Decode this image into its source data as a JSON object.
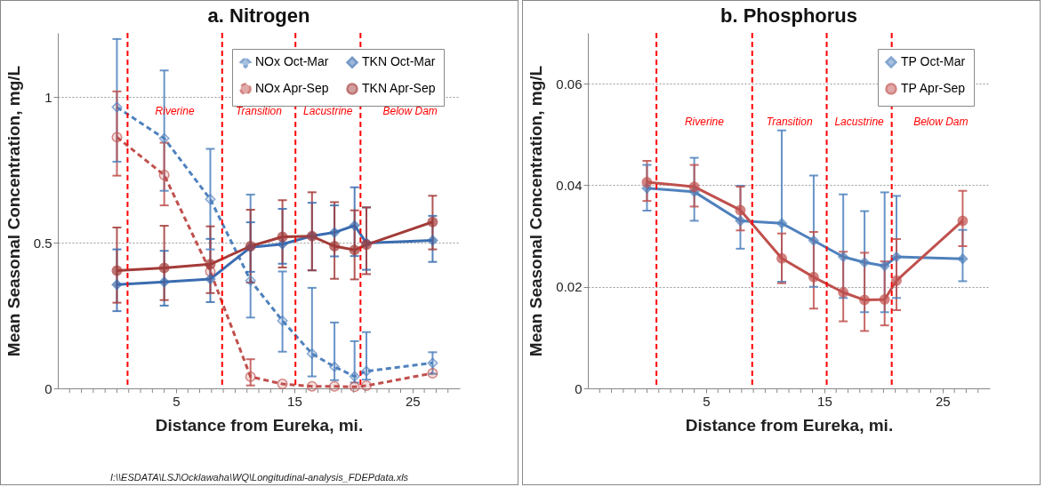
{
  "chart_data": [
    {
      "type": "line",
      "title": "a. Nitrogen",
      "xlabel": "Distance from Eureka, mi.",
      "ylabel": "Mean Seasonal Concentration, mg/L",
      "x": [
        0,
        4,
        7.9,
        11.3,
        14,
        16.5,
        18.4,
        20.1,
        21.1,
        26.7
      ],
      "xlim": [
        -5,
        29
      ],
      "xticks": [
        {
          "value": -4,
          "label": null
        },
        {
          "value": -3,
          "label": null
        },
        {
          "value": -2,
          "label": null
        },
        {
          "value": -1,
          "label": null
        },
        {
          "value": 0,
          "label": null
        },
        {
          "value": 1,
          "label": null
        },
        {
          "value": 2,
          "label": null
        },
        {
          "value": 3,
          "label": null
        },
        {
          "value": 4,
          "label": null
        },
        5,
        {
          "value": 6,
          "label": null
        },
        {
          "value": 7,
          "label": null
        },
        {
          "value": 8,
          "label": null
        },
        {
          "value": 9,
          "label": null
        },
        {
          "value": 10,
          "label": null
        },
        {
          "value": 11,
          "label": null
        },
        {
          "value": 12,
          "label": null
        },
        {
          "value": 13,
          "label": null
        },
        {
          "value": 14,
          "label": null
        },
        15,
        {
          "value": 16,
          "label": null
        },
        {
          "value": 17,
          "label": null
        },
        {
          "value": 18,
          "label": null
        },
        {
          "value": 19,
          "label": null
        },
        {
          "value": 20,
          "label": null
        },
        {
          "value": 21,
          "label": null
        },
        {
          "value": 22,
          "label": null
        },
        {
          "value": 23,
          "label": null
        },
        {
          "value": 24,
          "label": null
        },
        25,
        {
          "value": 26,
          "label": null
        },
        {
          "value": 27,
          "label": null
        },
        {
          "value": 28,
          "label": null
        }
      ],
      "ylim": [
        0,
        1.22
      ],
      "yticks": [
        0,
        0.5,
        1
      ],
      "grid": "y",
      "legend": "top right",
      "series": [
        {
          "name": "NOx Oct-Mar",
          "color": "#4f81bd",
          "marker": "diamond",
          "line_style": "dashed",
          "values": [
            0.965,
            0.858,
            0.649,
            0.37,
            0.232,
            0.119,
            0.074,
            0.041,
            0.059,
            0.087
          ],
          "errors": [
            [
              0.778,
              1.199
            ],
            [
              0.678,
              1.091
            ],
            [
              0.477,
              0.822
            ],
            [
              0.243,
              0.665
            ],
            [
              0.126,
              0.401
            ],
            [
              0.041,
              0.345
            ],
            [
              0.028,
              0.226
            ],
            [
              0.02,
              0.162
            ],
            [
              0.03,
              0.193
            ],
            [
              0.05,
              0.124
            ]
          ]
        },
        {
          "name": "NOx Apr-Sep",
          "color": "#c0504d",
          "marker": "circle",
          "line_style": "dashed",
          "values": [
            0.862,
            0.732,
            0.401,
            0.04,
            0.015,
            0.007,
            0.007,
            0.005,
            0.009,
            0.052
          ],
          "errors": [
            [
              0.73,
              1.019
            ],
            [
              0.628,
              0.843
            ],
            null,
            [
              0.01,
              0.1
            ],
            null,
            null,
            null,
            null,
            null,
            null
          ]
        },
        {
          "name": "TKN Oct-Mar",
          "color": "#3a6cb0",
          "marker": "diamond",
          "line_style": "solid",
          "values": [
            0.356,
            0.365,
            0.375,
            0.484,
            0.495,
            0.523,
            0.535,
            0.559,
            0.499,
            0.508
          ],
          "errors": [
            [
              0.265,
              0.477
            ],
            [
              0.284,
              0.472
            ],
            [
              0.296,
              0.513
            ],
            [
              0.4,
              0.57
            ],
            [
              0.428,
              0.616
            ],
            [
              0.405,
              0.637
            ],
            [
              0.453,
              0.628
            ],
            [
              0.454,
              0.69
            ],
            [
              0.407,
              0.621
            ],
            [
              0.434,
              0.592
            ]
          ]
        },
        {
          "name": "TKN Apr-Sep",
          "color": "#a33b38",
          "marker": "circle",
          "line_style": "solid",
          "values": [
            0.404,
            0.413,
            0.426,
            0.488,
            0.52,
            0.522,
            0.488,
            0.475,
            0.493,
            0.571
          ],
          "errors": [
            [
              0.294,
              0.552
            ],
            [
              0.303,
              0.558
            ],
            [
              0.327,
              0.556
            ],
            [
              0.363,
              0.613
            ],
            [
              0.415,
              0.646
            ],
            [
              0.405,
              0.673
            ],
            [
              0.376,
              0.639
            ],
            [
              0.374,
              0.611
            ],
            [
              0.392,
              0.621
            ],
            [
              0.477,
              0.661
            ]
          ]
        }
      ],
      "ref_lines": [
        {
          "axis": "x",
          "value": 0.9,
          "color": "#ff0000",
          "line_style": "dashed"
        },
        {
          "axis": "x",
          "value": 8.9,
          "color": "#ff0000",
          "line_style": "dashed"
        },
        {
          "axis": "x",
          "value": 15.1,
          "color": "#ff0000",
          "line_style": "dashed"
        },
        {
          "axis": "x",
          "value": 20.6,
          "color": "#ff0000",
          "line_style": "dashed"
        }
      ],
      "annotations": [
        "Riverine",
        "Transition",
        "Lacustrine",
        "Below Dam",
        "I:\\\\ESDATA\\LSJ\\Ocklawaha\\WQ\\Longitudinal-analysis_FDEPdata.xls"
      ]
    },
    {
      "type": "line",
      "title": "b. Phosphorus",
      "xlabel": "Distance from Eureka, mi.",
      "ylabel": "Mean Seasonal Concentration, mg/L",
      "x": [
        0,
        4,
        7.9,
        11.4,
        14.1,
        16.6,
        18.4,
        20.1,
        21.1,
        26.7
      ],
      "xlim": [
        -5,
        29
      ],
      "xticks": [
        {
          "value": -4,
          "label": null
        },
        {
          "value": -3,
          "label": null
        },
        {
          "value": -2,
          "label": null
        },
        {
          "value": -1,
          "label": null
        },
        {
          "value": 0,
          "label": null
        },
        {
          "value": 1,
          "label": null
        },
        {
          "value": 2,
          "label": null
        },
        {
          "value": 3,
          "label": null
        },
        {
          "value": 4,
          "label": null
        },
        5,
        {
          "value": 6,
          "label": null
        },
        {
          "value": 7,
          "label": null
        },
        {
          "value": 8,
          "label": null
        },
        {
          "value": 9,
          "label": null
        },
        {
          "value": 10,
          "label": null
        },
        {
          "value": 11,
          "label": null
        },
        {
          "value": 12,
          "label": null
        },
        {
          "value": 13,
          "label": null
        },
        {
          "value": 14,
          "label": null
        },
        15,
        {
          "value": 16,
          "label": null
        },
        {
          "value": 17,
          "label": null
        },
        {
          "value": 18,
          "label": null
        },
        {
          "value": 19,
          "label": null
        },
        {
          "value": 20,
          "label": null
        },
        {
          "value": 21,
          "label": null
        },
        {
          "value": 22,
          "label": null
        },
        {
          "value": 23,
          "label": null
        },
        {
          "value": 24,
          "label": null
        },
        25,
        {
          "value": 26,
          "label": null
        },
        {
          "value": 27,
          "label": null
        },
        {
          "value": 28,
          "label": null
        }
      ],
      "ylim": [
        0,
        0.07
      ],
      "yticks": [
        0,
        0.02,
        0.04,
        0.06
      ],
      "grid": "y",
      "legend": "top right",
      "series": [
        {
          "name": "TP Oct-Mar",
          "color": "#4f81bd",
          "marker": "diamond",
          "line_style": "solid",
          "values": [
            0.0394,
            0.0387,
            0.033,
            0.0325,
            0.0291,
            0.0259,
            0.0248,
            0.0241,
            0.0259,
            0.0255
          ],
          "errors": [
            [
              0.035,
              0.044
            ],
            [
              0.033,
              0.0454
            ],
            [
              0.0275,
              0.0399
            ],
            [
              0.021,
              0.0508
            ],
            [
              0.02,
              0.0419
            ],
            [
              0.0178,
              0.0382
            ],
            [
              0.015,
              0.0349
            ],
            [
              0.015,
              0.0386
            ],
            [
              0.0178,
              0.0379
            ],
            [
              0.0211,
              0.0312
            ]
          ]
        },
        {
          "name": "TP Apr-Sep",
          "color": "#c0504d",
          "marker": "circle",
          "line_style": "solid",
          "values": [
            0.0406,
            0.0397,
            0.0351,
            0.0256,
            0.0219,
            0.0189,
            0.0174,
            0.0175,
            0.0212,
            0.033
          ],
          "errors": [
            [
              0.0369,
              0.0448
            ],
            [
              0.0358,
              0.044
            ],
            [
              0.0311,
              0.0397
            ],
            [
              0.0207,
              0.0305
            ],
            [
              0.0157,
              0.0308
            ],
            [
              0.0132,
              0.0269
            ],
            [
              0.0113,
              0.0267
            ],
            [
              0.0124,
              0.025
            ],
            [
              0.0154,
              0.0294
            ],
            [
              0.028,
              0.0389
            ]
          ]
        }
      ],
      "ref_lines": [
        {
          "axis": "x",
          "value": 0.8,
          "color": "#ff0000",
          "line_style": "dashed"
        },
        {
          "axis": "x",
          "value": 8.9,
          "color": "#ff0000",
          "line_style": "dashed"
        },
        {
          "axis": "x",
          "value": 15.2,
          "color": "#ff0000",
          "line_style": "dashed"
        },
        {
          "axis": "x",
          "value": 20.7,
          "color": "#ff0000",
          "line_style": "dashed"
        }
      ],
      "annotations": [
        "Riverine",
        "Transition",
        "Lacustrine",
        "Below Dam"
      ]
    }
  ]
}
